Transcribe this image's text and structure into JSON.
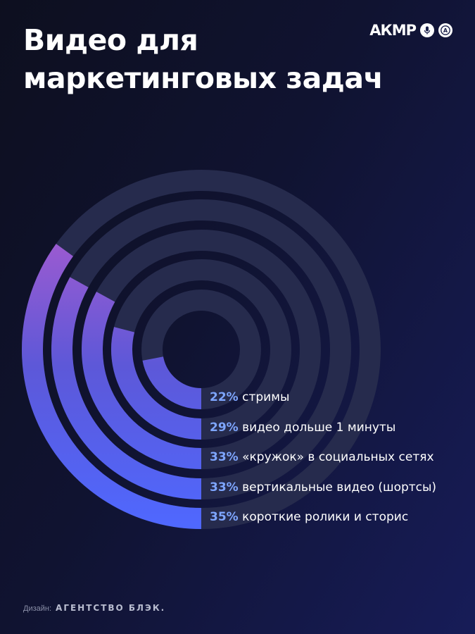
{
  "title_line1": "Видео для",
  "title_line2": "маркетинговых задач",
  "logos": {
    "akmr_text": "АКМР",
    "badge_a_text": "А",
    "icons": [
      "akmr-logo",
      "microphone-badge-icon",
      "a-badge-icon"
    ]
  },
  "footer": {
    "prefix": "Дизайн:",
    "agency": "АГЕНТСТВО БЛЭК."
  },
  "colors": {
    "track": "#262b4d",
    "arc_start": "#4f68ff",
    "arc_end": "#a05bd0",
    "percent": "#7ea6ff"
  },
  "chart_data": {
    "type": "radial-bar",
    "unit": "%",
    "max": 100,
    "items": [
      {
        "value": 22,
        "percent_label": "22%",
        "label": "стримы"
      },
      {
        "value": 29,
        "percent_label": "29%",
        "label": "видео дольше 1 минуты"
      },
      {
        "value": 33,
        "percent_label": "33%",
        "label": "«кружок» в социальных сетях"
      },
      {
        "value": 33,
        "percent_label": "33%",
        "label": "вертикальные видео (шортсы)"
      },
      {
        "value": 35,
        "percent_label": "35%",
        "label": "короткие ролики и сторис"
      }
    ]
  }
}
